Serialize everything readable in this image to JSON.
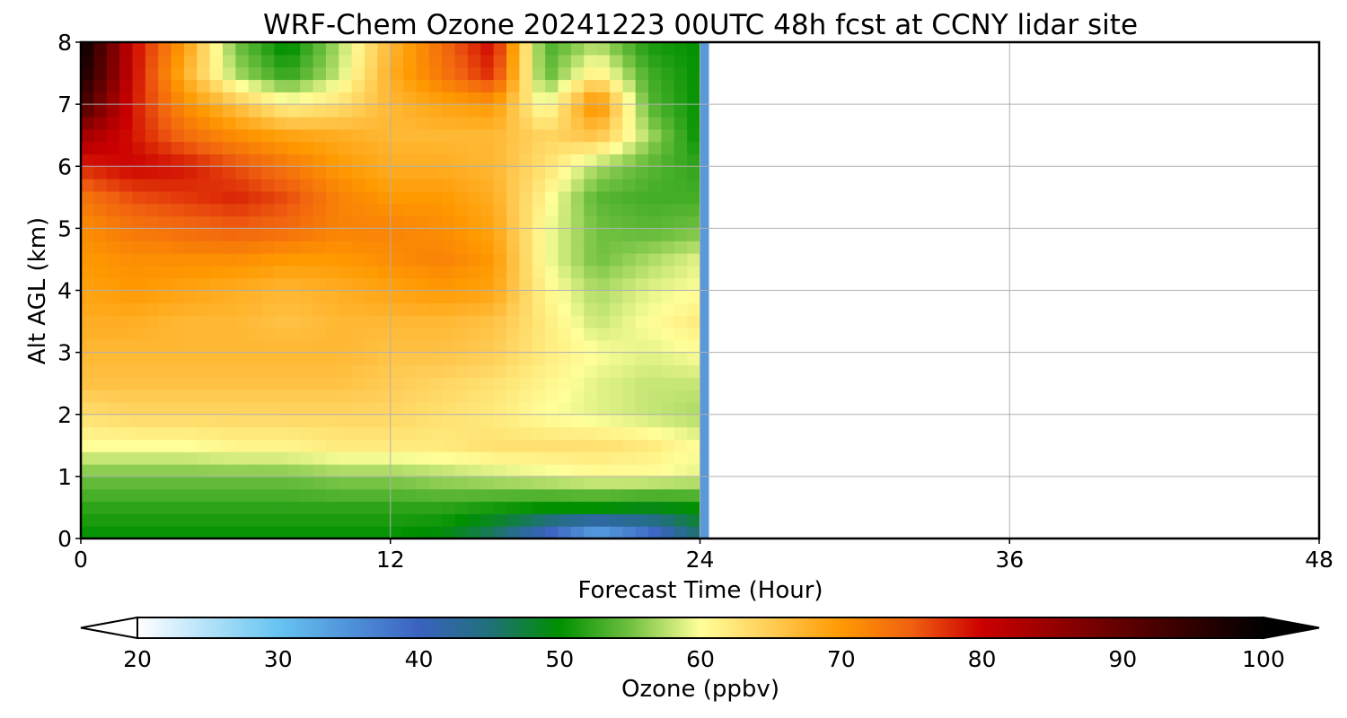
{
  "chart_data": {
    "type": "heatmap",
    "title": "WRF-Chem Ozone  20241223 00UTC 48h fcst at CCNY lidar site",
    "xlabel": "Forecast Time (Hour)",
    "ylabel": "Alt AGL (km)",
    "xlim": [
      0,
      48
    ],
    "ylim": [
      0,
      8
    ],
    "xticks": [
      0,
      12,
      24,
      36,
      48
    ],
    "yticks": [
      0,
      1,
      2,
      3,
      4,
      5,
      6,
      7,
      8
    ],
    "grid": true,
    "x": [
      0,
      2,
      4,
      6,
      8,
      10,
      12,
      14,
      16,
      18,
      20,
      22,
      24
    ],
    "y": [
      0,
      0.5,
      1,
      1.5,
      2,
      2.5,
      3,
      3.5,
      4,
      4.5,
      5,
      5.5,
      6,
      6.5,
      7,
      7.5,
      8
    ],
    "z": [
      [
        50,
        50,
        50,
        50,
        50,
        50,
        50,
        49,
        45,
        38,
        30,
        36,
        45
      ],
      [
        52,
        52,
        52,
        52,
        52,
        52,
        52,
        52,
        51,
        50,
        50,
        49,
        50
      ],
      [
        55,
        55,
        55,
        55,
        55,
        56,
        56,
        57,
        58,
        59,
        60,
        60,
        59
      ],
      [
        60,
        60,
        60,
        61,
        61,
        62,
        62,
        62,
        63,
        63,
        63,
        62,
        60
      ],
      [
        63,
        64,
        64,
        64,
        64,
        64,
        64,
        63,
        62,
        60,
        59,
        58,
        57
      ],
      [
        66,
        66,
        66,
        66,
        66,
        66,
        65,
        64,
        63,
        61,
        59,
        58,
        58
      ],
      [
        67,
        67,
        67,
        67,
        67,
        67,
        66,
        66,
        65,
        62,
        60,
        59,
        60
      ],
      [
        68,
        68,
        67,
        67,
        66,
        67,
        67,
        67,
        66,
        62,
        58,
        60,
        62
      ],
      [
        69,
        70,
        69,
        68,
        67,
        68,
        69,
        70,
        69,
        61,
        57,
        59,
        60
      ],
      [
        70,
        71,
        71,
        71,
        70,
        70,
        71,
        72,
        70,
        60,
        55,
        57,
        59
      ],
      [
        71,
        73,
        74,
        75,
        74,
        72,
        72,
        71,
        69,
        60,
        55,
        54,
        55
      ],
      [
        73,
        76,
        77,
        78,
        76,
        72,
        70,
        70,
        68,
        61,
        54,
        53,
        53
      ],
      [
        78,
        80,
        79,
        76,
        73,
        70,
        68,
        68,
        67,
        63,
        57,
        54,
        52
      ],
      [
        84,
        79,
        74,
        71,
        69,
        68,
        67,
        67,
        67,
        64,
        66,
        57,
        50
      ],
      [
        93,
        79,
        71,
        66,
        61,
        63,
        67,
        69,
        70,
        59,
        72,
        54,
        50
      ],
      [
        98,
        80,
        68,
        57,
        52,
        58,
        68,
        73,
        78,
        54,
        62,
        53,
        50
      ],
      [
        100,
        80,
        70,
        55,
        49,
        57,
        67,
        74,
        80,
        53,
        57,
        51,
        50
      ]
    ],
    "colorbar": {
      "label": "Ozone  (ppbv)",
      "min": 20,
      "max": 100,
      "ticks": [
        20,
        30,
        40,
        50,
        60,
        70,
        80,
        90,
        100
      ],
      "extend": "both",
      "colors": [
        [
          20,
          "#ffffff"
        ],
        [
          30,
          "#66c4f2"
        ],
        [
          40,
          "#3a62c0"
        ],
        [
          45,
          "#20707a"
        ],
        [
          50,
          "#009000"
        ],
        [
          55,
          "#70c040"
        ],
        [
          60,
          "#ffff99"
        ],
        [
          65,
          "#ffcc55"
        ],
        [
          70,
          "#ff9900"
        ],
        [
          75,
          "#f06010"
        ],
        [
          80,
          "#cc0000"
        ],
        [
          90,
          "#600000"
        ],
        [
          100,
          "#000000"
        ]
      ]
    }
  }
}
